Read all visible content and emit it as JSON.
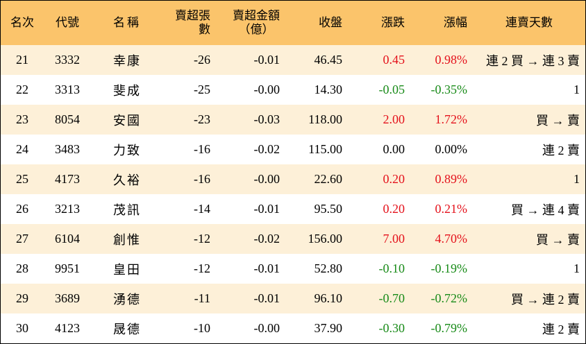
{
  "colors": {
    "header_bg": "#fbc46b",
    "stripe_bg": "#fdf0d8",
    "up": "#e4111b",
    "down": "#178a17",
    "flat": "#000000"
  },
  "headers": {
    "rank": "名次",
    "code": "代號",
    "name": "名稱",
    "sold_lots": "賣超張數",
    "sold_amount_1": "賣超金額",
    "sold_amount_2": "（億）",
    "close": "收盤",
    "change": "漲跌",
    "pct": "漲幅",
    "streak": "連賣天數"
  },
  "rows": [
    {
      "rank": "21",
      "code": "3332",
      "name": "幸康",
      "lots": "-26",
      "amount": "-0.01",
      "close": "46.45",
      "change": "0.45",
      "pct": "0.98%",
      "trend": "up",
      "streak": "連 2 買 → 連 3 賣"
    },
    {
      "rank": "22",
      "code": "3313",
      "name": "斐成",
      "lots": "-25",
      "amount": "-0.00",
      "close": "14.30",
      "change": "-0.05",
      "pct": "-0.35%",
      "trend": "down",
      "streak": "1"
    },
    {
      "rank": "23",
      "code": "8054",
      "name": "安國",
      "lots": "-23",
      "amount": "-0.03",
      "close": "118.00",
      "change": "2.00",
      "pct": "1.72%",
      "trend": "up",
      "streak": "買 → 賣"
    },
    {
      "rank": "24",
      "code": "3483",
      "name": "力致",
      "lots": "-16",
      "amount": "-0.02",
      "close": "115.00",
      "change": "0.00",
      "pct": "0.00%",
      "trend": "flat",
      "streak": "連 2 賣"
    },
    {
      "rank": "25",
      "code": "4173",
      "name": "久裕",
      "lots": "-16",
      "amount": "-0.00",
      "close": "22.60",
      "change": "0.20",
      "pct": "0.89%",
      "trend": "up",
      "streak": "1"
    },
    {
      "rank": "26",
      "code": "3213",
      "name": "茂訊",
      "lots": "-14",
      "amount": "-0.01",
      "close": "95.50",
      "change": "0.20",
      "pct": "0.21%",
      "trend": "up",
      "streak": "買 → 連 4 賣"
    },
    {
      "rank": "27",
      "code": "6104",
      "name": "創惟",
      "lots": "-12",
      "amount": "-0.02",
      "close": "156.00",
      "change": "7.00",
      "pct": "4.70%",
      "trend": "up",
      "streak": "買 → 賣"
    },
    {
      "rank": "28",
      "code": "9951",
      "name": "皇田",
      "lots": "-12",
      "amount": "-0.01",
      "close": "52.80",
      "change": "-0.10",
      "pct": "-0.19%",
      "trend": "down",
      "streak": "1"
    },
    {
      "rank": "29",
      "code": "3689",
      "name": "湧德",
      "lots": "-11",
      "amount": "-0.01",
      "close": "96.10",
      "change": "-0.70",
      "pct": "-0.72%",
      "trend": "down",
      "streak": "買 → 連 2 賣"
    },
    {
      "rank": "30",
      "code": "4123",
      "name": "晟德",
      "lots": "-10",
      "amount": "-0.00",
      "close": "37.90",
      "change": "-0.30",
      "pct": "-0.79%",
      "trend": "down",
      "streak": "連 2 賣"
    }
  ]
}
